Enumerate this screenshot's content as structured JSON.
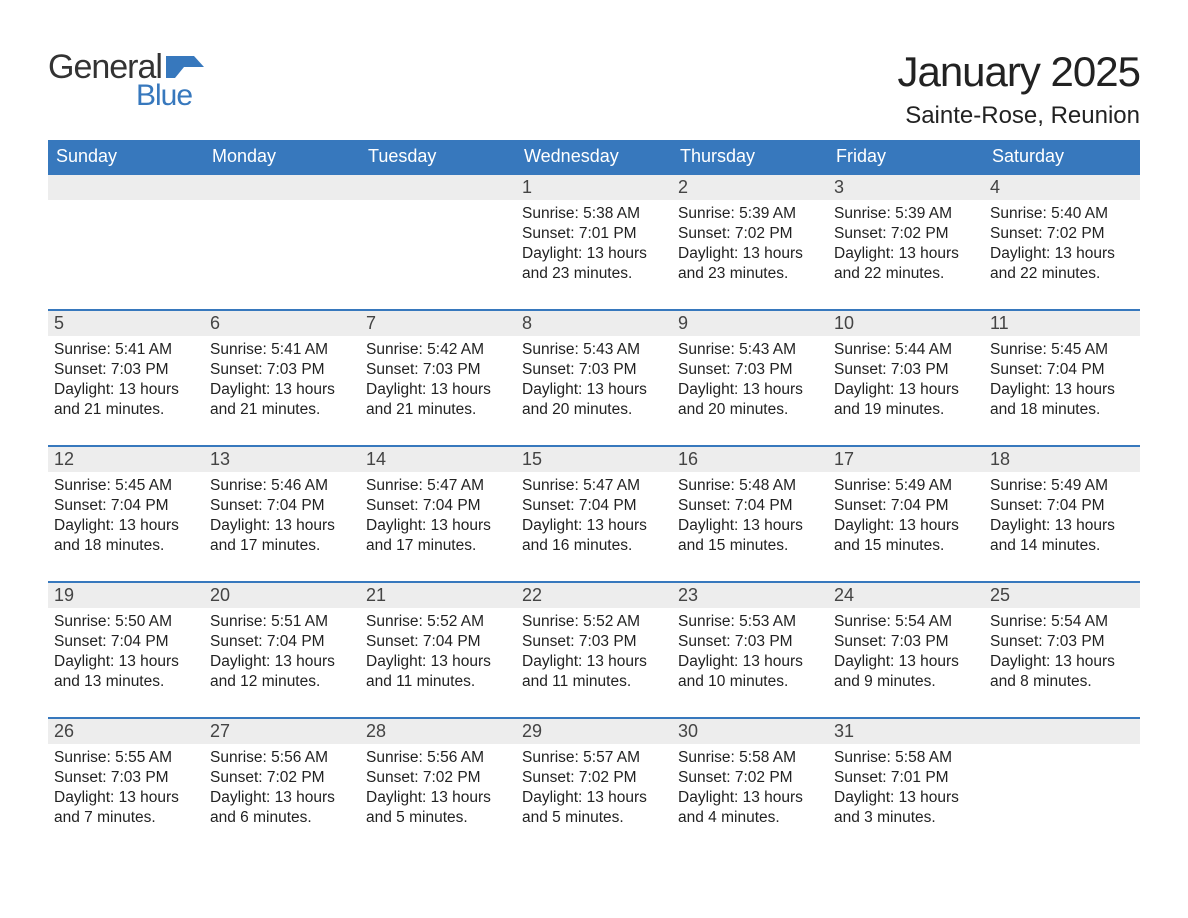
{
  "logo": {
    "word1": "General",
    "word2": "Blue",
    "flag_color": "#3778bd"
  },
  "title": "January 2025",
  "location": "Sainte-Rose, Reunion",
  "colors": {
    "header_bg": "#3778bd",
    "header_text": "#ffffff",
    "daynum_bg": "#ededed",
    "daynum_text": "#444444",
    "body_text": "#222222",
    "rule": "#3778bd",
    "page_bg": "#ffffff"
  },
  "typography": {
    "title_fontsize": 42,
    "location_fontsize": 24,
    "dow_fontsize": 18,
    "daynum_fontsize": 18,
    "body_fontsize": 15.5
  },
  "layout": {
    "columns": 7,
    "rows": 5,
    "start_day_index": 3
  },
  "days_of_week": [
    "Sunday",
    "Monday",
    "Tuesday",
    "Wednesday",
    "Thursday",
    "Friday",
    "Saturday"
  ],
  "days": [
    {
      "n": 1,
      "sunrise": "5:38 AM",
      "sunset": "7:01 PM",
      "daylight": "13 hours and 23 minutes."
    },
    {
      "n": 2,
      "sunrise": "5:39 AM",
      "sunset": "7:02 PM",
      "daylight": "13 hours and 23 minutes."
    },
    {
      "n": 3,
      "sunrise": "5:39 AM",
      "sunset": "7:02 PM",
      "daylight": "13 hours and 22 minutes."
    },
    {
      "n": 4,
      "sunrise": "5:40 AM",
      "sunset": "7:02 PM",
      "daylight": "13 hours and 22 minutes."
    },
    {
      "n": 5,
      "sunrise": "5:41 AM",
      "sunset": "7:03 PM",
      "daylight": "13 hours and 21 minutes."
    },
    {
      "n": 6,
      "sunrise": "5:41 AM",
      "sunset": "7:03 PM",
      "daylight": "13 hours and 21 minutes."
    },
    {
      "n": 7,
      "sunrise": "5:42 AM",
      "sunset": "7:03 PM",
      "daylight": "13 hours and 21 minutes."
    },
    {
      "n": 8,
      "sunrise": "5:43 AM",
      "sunset": "7:03 PM",
      "daylight": "13 hours and 20 minutes."
    },
    {
      "n": 9,
      "sunrise": "5:43 AM",
      "sunset": "7:03 PM",
      "daylight": "13 hours and 20 minutes."
    },
    {
      "n": 10,
      "sunrise": "5:44 AM",
      "sunset": "7:03 PM",
      "daylight": "13 hours and 19 minutes."
    },
    {
      "n": 11,
      "sunrise": "5:45 AM",
      "sunset": "7:04 PM",
      "daylight": "13 hours and 18 minutes."
    },
    {
      "n": 12,
      "sunrise": "5:45 AM",
      "sunset": "7:04 PM",
      "daylight": "13 hours and 18 minutes."
    },
    {
      "n": 13,
      "sunrise": "5:46 AM",
      "sunset": "7:04 PM",
      "daylight": "13 hours and 17 minutes."
    },
    {
      "n": 14,
      "sunrise": "5:47 AM",
      "sunset": "7:04 PM",
      "daylight": "13 hours and 17 minutes."
    },
    {
      "n": 15,
      "sunrise": "5:47 AM",
      "sunset": "7:04 PM",
      "daylight": "13 hours and 16 minutes."
    },
    {
      "n": 16,
      "sunrise": "5:48 AM",
      "sunset": "7:04 PM",
      "daylight": "13 hours and 15 minutes."
    },
    {
      "n": 17,
      "sunrise": "5:49 AM",
      "sunset": "7:04 PM",
      "daylight": "13 hours and 15 minutes."
    },
    {
      "n": 18,
      "sunrise": "5:49 AM",
      "sunset": "7:04 PM",
      "daylight": "13 hours and 14 minutes."
    },
    {
      "n": 19,
      "sunrise": "5:50 AM",
      "sunset": "7:04 PM",
      "daylight": "13 hours and 13 minutes."
    },
    {
      "n": 20,
      "sunrise": "5:51 AM",
      "sunset": "7:04 PM",
      "daylight": "13 hours and 12 minutes."
    },
    {
      "n": 21,
      "sunrise": "5:52 AM",
      "sunset": "7:04 PM",
      "daylight": "13 hours and 11 minutes."
    },
    {
      "n": 22,
      "sunrise": "5:52 AM",
      "sunset": "7:03 PM",
      "daylight": "13 hours and 11 minutes."
    },
    {
      "n": 23,
      "sunrise": "5:53 AM",
      "sunset": "7:03 PM",
      "daylight": "13 hours and 10 minutes."
    },
    {
      "n": 24,
      "sunrise": "5:54 AM",
      "sunset": "7:03 PM",
      "daylight": "13 hours and 9 minutes."
    },
    {
      "n": 25,
      "sunrise": "5:54 AM",
      "sunset": "7:03 PM",
      "daylight": "13 hours and 8 minutes."
    },
    {
      "n": 26,
      "sunrise": "5:55 AM",
      "sunset": "7:03 PM",
      "daylight": "13 hours and 7 minutes."
    },
    {
      "n": 27,
      "sunrise": "5:56 AM",
      "sunset": "7:02 PM",
      "daylight": "13 hours and 6 minutes."
    },
    {
      "n": 28,
      "sunrise": "5:56 AM",
      "sunset": "7:02 PM",
      "daylight": "13 hours and 5 minutes."
    },
    {
      "n": 29,
      "sunrise": "5:57 AM",
      "sunset": "7:02 PM",
      "daylight": "13 hours and 5 minutes."
    },
    {
      "n": 30,
      "sunrise": "5:58 AM",
      "sunset": "7:02 PM",
      "daylight": "13 hours and 4 minutes."
    },
    {
      "n": 31,
      "sunrise": "5:58 AM",
      "sunset": "7:01 PM",
      "daylight": "13 hours and 3 minutes."
    }
  ],
  "labels": {
    "sunrise": "Sunrise:",
    "sunset": "Sunset:",
    "daylight": "Daylight:"
  }
}
